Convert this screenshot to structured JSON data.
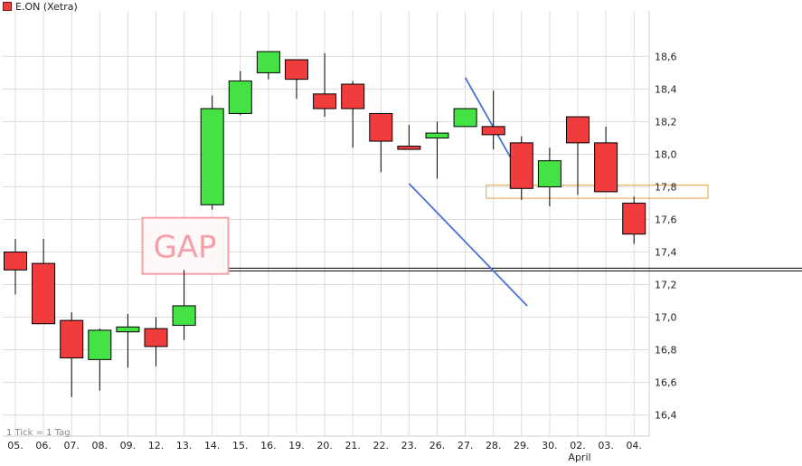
{
  "legend": {
    "label": "E.ON (Xetra)",
    "color": "#e83c3c"
  },
  "footnote": "1 Tick = 1 Tag",
  "month_label": "April",
  "annotations": {
    "gap": "GAP"
  },
  "colors": {
    "up": "#44e244",
    "down": "#f03c3c",
    "channel": "#4a6fd6",
    "support": "#000000",
    "zone": "#e0a040",
    "gap": "#f4a0a8",
    "grid": "#dcdcdc"
  },
  "chart_data": {
    "type": "candlestick",
    "title": "E.ON (Xetra)",
    "xlabel": "",
    "ylabel": "",
    "ylim": [
      16.27,
      18.88
    ],
    "yticks": [
      "16,4",
      "16,6",
      "16,8",
      "17,0",
      "17,2",
      "17,4",
      "17,6",
      "17,8",
      "18,0",
      "18,2",
      "18,4",
      "18,6"
    ],
    "ytick_values": [
      16.4,
      16.6,
      16.8,
      17.0,
      17.2,
      17.4,
      17.6,
      17.8,
      18.0,
      18.2,
      18.4,
      18.6
    ],
    "categories": [
      "05.",
      "06.",
      "07.",
      "08.",
      "09.",
      "12.",
      "13.",
      "14.",
      "15.",
      "16.",
      "19.",
      "20.",
      "21.",
      "22.",
      "23.",
      "26.",
      "27.",
      "28.",
      "29.",
      "30.",
      "02.",
      "03.",
      "04."
    ],
    "candles": [
      {
        "o": 17.4,
        "h": 17.48,
        "l": 17.14,
        "c": 17.29
      },
      {
        "o": 17.33,
        "h": 17.48,
        "l": 16.96,
        "c": 16.96
      },
      {
        "o": 16.98,
        "h": 17.03,
        "l": 16.51,
        "c": 16.75
      },
      {
        "o": 16.74,
        "h": 16.93,
        "l": 16.55,
        "c": 16.92
      },
      {
        "o": 16.91,
        "h": 17.02,
        "l": 16.69,
        "c": 16.94
      },
      {
        "o": 16.93,
        "h": 17.0,
        "l": 16.7,
        "c": 16.82
      },
      {
        "o": 16.95,
        "h": 17.29,
        "l": 16.86,
        "c": 17.07
      },
      {
        "o": 17.69,
        "h": 18.36,
        "l": 17.66,
        "c": 18.28
      },
      {
        "o": 18.25,
        "h": 18.51,
        "l": 18.24,
        "c": 18.45
      },
      {
        "o": 18.5,
        "h": 18.63,
        "l": 18.46,
        "c": 18.63
      },
      {
        "o": 18.58,
        "h": 18.58,
        "l": 18.34,
        "c": 18.46
      },
      {
        "o": 18.37,
        "h": 18.62,
        "l": 18.23,
        "c": 18.28
      },
      {
        "o": 18.43,
        "h": 18.45,
        "l": 18.04,
        "c": 18.28
      },
      {
        "o": 18.25,
        "h": 18.25,
        "l": 17.89,
        "c": 18.08
      },
      {
        "o": 18.05,
        "h": 18.18,
        "l": 18.03,
        "c": 18.03
      },
      {
        "o": 18.1,
        "h": 18.2,
        "l": 17.85,
        "c": 18.13
      },
      {
        "o": 18.17,
        "h": 18.28,
        "l": 18.17,
        "c": 18.28
      },
      {
        "o": 18.17,
        "h": 18.39,
        "l": 18.03,
        "c": 18.12
      },
      {
        "o": 18.07,
        "h": 18.11,
        "l": 17.72,
        "c": 17.79
      },
      {
        "o": 17.8,
        "h": 18.04,
        "l": 17.68,
        "c": 17.96
      },
      {
        "o": 18.23,
        "h": 18.23,
        "l": 17.75,
        "c": 18.07
      },
      {
        "o": 18.07,
        "h": 18.17,
        "l": 17.77,
        "c": 17.77
      },
      {
        "o": 17.7,
        "h": 17.74,
        "l": 17.45,
        "c": 17.51
      }
    ],
    "lines": {
      "support_level": 17.29,
      "channel_upper": [
        {
          "x": "27.",
          "y": 18.47
        },
        {
          "x_end": 18.2,
          "y": 17.8
        }
      ],
      "channel_lower": [
        {
          "x": "23.",
          "y": 17.82
        },
        {
          "x_end": 18.2,
          "y": 17.07
        }
      ],
      "zone": [
        17.73,
        17.81
      ]
    },
    "grid": true,
    "legend_position": "top-left"
  }
}
